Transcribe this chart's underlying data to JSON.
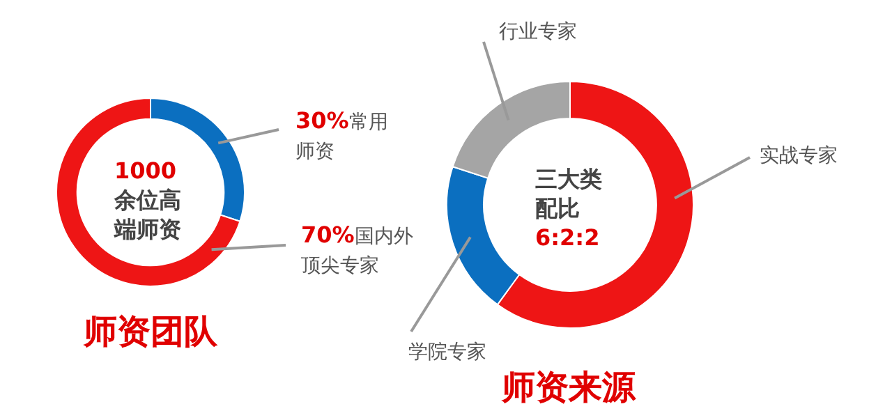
{
  "chart_data": [
    {
      "type": "donut",
      "title": "师资团队",
      "categories": [
        "常用师资",
        "国内外顶尖专家"
      ],
      "values": [
        30,
        70
      ],
      "colors": [
        "#0b6fc0",
        "#ee1515"
      ],
      "value_labels": [
        "30%",
        "70%"
      ],
      "annotations": [
        "1000余位高端师资"
      ]
    },
    {
      "type": "donut",
      "title": "师资来源",
      "categories": [
        "实战专家",
        "学院专家",
        "行业专家"
      ],
      "values": [
        60,
        20,
        20
      ],
      "colors": [
        "#ee1515",
        "#0b6fc0",
        "#a5a5a5"
      ],
      "annotations": [
        "三大类配比6:2:2"
      ]
    }
  ]
}
